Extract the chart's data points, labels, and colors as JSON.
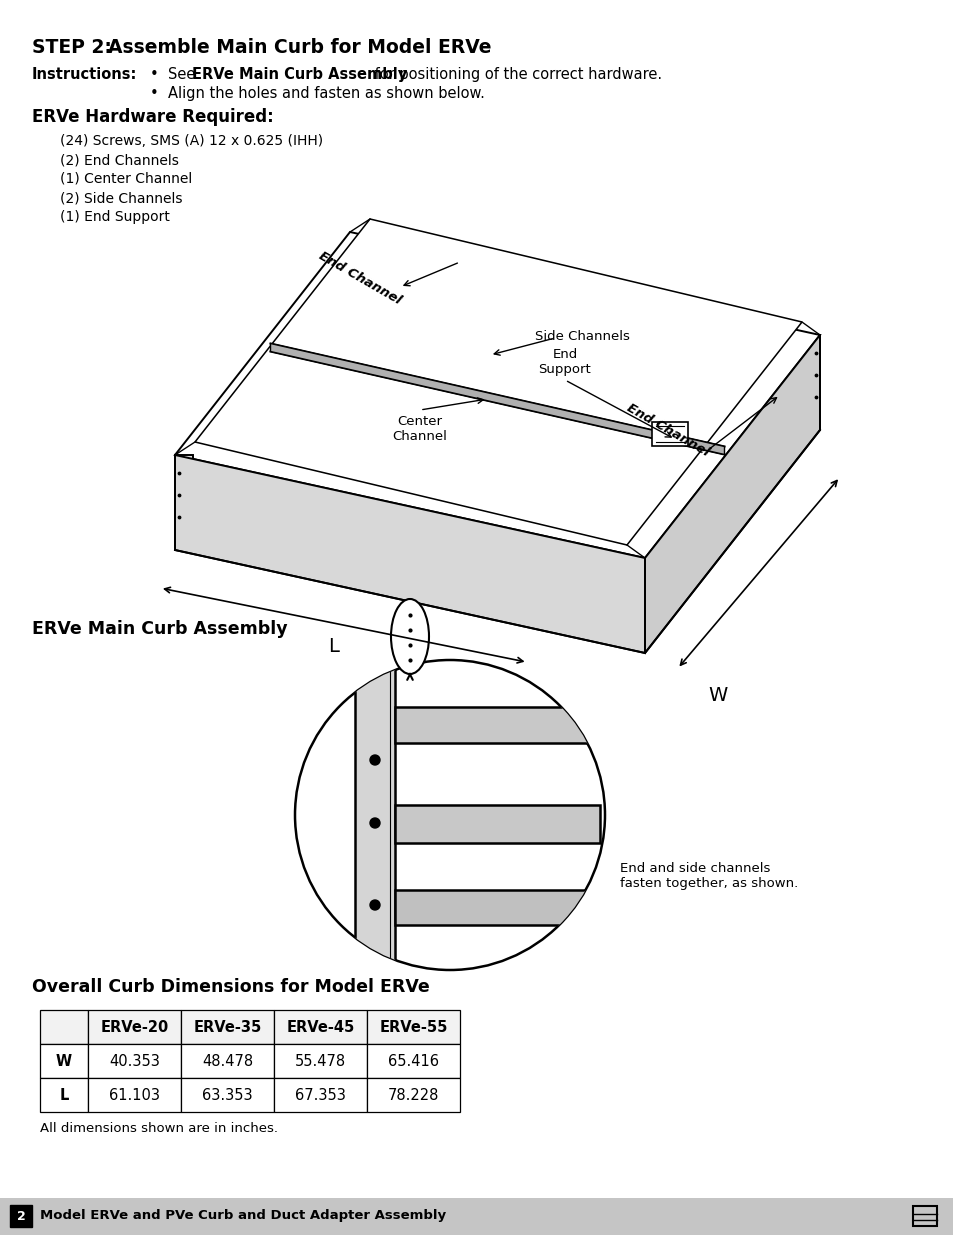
{
  "step_bold": "STEP 2:",
  "step_rest": "      Assemble Main Curb for Model ERVe",
  "instructions_label": "Instructions:",
  "bullet1_pre": "See ",
  "bullet1_bold": "ERVe Main Curb Assembly",
  "bullet1_post": " for positioning of the correct hardware.",
  "bullet2": "Align the holes and fasten as shown below.",
  "hardware_title": "ERVe Hardware Required:",
  "hardware_items": [
    "(24) Screws, SMS (A) 12 x 0.625 (IHH)",
    "(2) End Channels",
    "(1) Center Channel",
    "(2) Side Channels",
    "(1) End Support"
  ],
  "curb_assembly_label": "ERVe Main Curb Assembly",
  "detail_caption": "End and side channels\nfasten together, as shown.",
  "table_title": "Overall Curb Dimensions for Model ERVe",
  "table_headers": [
    "",
    "ERVe-20",
    "ERVe-35",
    "ERVe-45",
    "ERVe-55"
  ],
  "table_row_w": [
    "W",
    "40.353",
    "48.478",
    "55.478",
    "65.416"
  ],
  "table_row_l": [
    "L",
    "61.103",
    "63.353",
    "67.353",
    "78.228"
  ],
  "table_note": "All dimensions shown are in inches.",
  "footer_page": "2",
  "footer_text": "Model ERVe and PVe Curb and Duct Adapter Assembly"
}
